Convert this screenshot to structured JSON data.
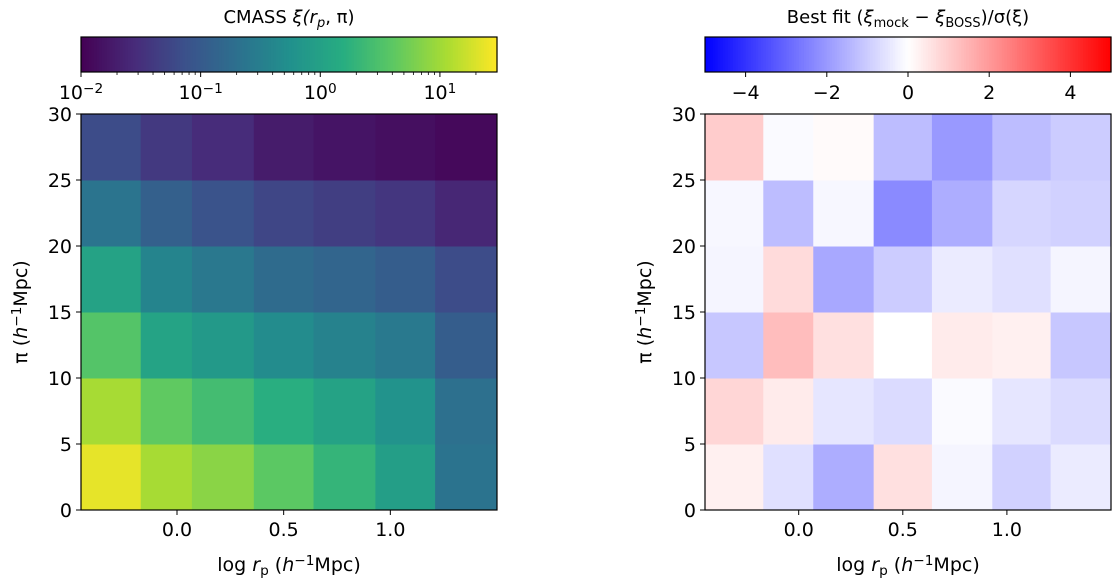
{
  "chart_data": [
    {
      "type": "heatmap",
      "title_parts": [
        "CMASS ",
        "ξ(",
        "r",
        "p",
        ", π)"
      ],
      "xlabel_parts": [
        "log ",
        "r",
        "p",
        " (",
        "h",
        "−1",
        "Mpc)"
      ],
      "ylabel_parts": [
        "π (",
        "h",
        "−1",
        "Mpc)"
      ],
      "xlim": [
        -0.45,
        1.5
      ],
      "ylim": [
        0,
        30
      ],
      "xticks": [
        0.0,
        0.5,
        1.0
      ],
      "xtick_labels": [
        "0.0",
        "0.5",
        "1.0"
      ],
      "yticks": [
        0,
        5,
        10,
        15,
        20,
        25,
        30
      ],
      "ytick_labels": [
        "0",
        "5",
        "10",
        "15",
        "20",
        "25",
        "30"
      ],
      "colormap": "viridis",
      "color_scale": "log",
      "colorbar": {
        "range": [
          0.01,
          30
        ],
        "ticks": [
          0.01,
          0.1,
          1,
          10
        ],
        "tick_labels": [
          [
            "10",
            "−2"
          ],
          [
            "10",
            "−1"
          ],
          [
            "10",
            "0"
          ],
          [
            "10",
            "1"
          ]
        ],
        "location": "top"
      },
      "x_bin_edges": [
        -0.45,
        -0.17,
        0.07,
        0.36,
        0.64,
        0.93,
        1.21,
        1.5
      ],
      "y_bin_edges": [
        0,
        5,
        10,
        15,
        20,
        25,
        30
      ],
      "rows_from_bottom": [
        [
          23.0,
          11.0,
          7.5,
          4.0,
          2.0,
          0.9,
          0.22
        ],
        [
          11.0,
          4.2,
          2.6,
          1.6,
          1.05,
          0.6,
          0.2
        ],
        [
          3.5,
          1.1,
          0.75,
          0.48,
          0.35,
          0.27,
          0.11
        ],
        [
          1.05,
          0.38,
          0.26,
          0.17,
          0.14,
          0.11,
          0.065
        ],
        [
          0.23,
          0.12,
          0.08,
          0.055,
          0.045,
          0.037,
          0.025
        ],
        [
          0.065,
          0.04,
          0.028,
          0.019,
          0.016,
          0.014,
          0.012
        ]
      ]
    },
    {
      "type": "heatmap",
      "title_parts": [
        "Best fit (",
        "ξ",
        "mock",
        " − ",
        "ξ",
        "BOSS",
        ")/σ(ξ)"
      ],
      "xlabel_parts": [
        "log ",
        "r",
        "p",
        " (",
        "h",
        "−1",
        "Mpc)"
      ],
      "ylabel_parts": [
        "π (",
        "h",
        "−1",
        "Mpc)"
      ],
      "xlim": [
        -0.45,
        1.5
      ],
      "ylim": [
        0,
        30
      ],
      "xticks": [
        0.0,
        0.5,
        1.0
      ],
      "xtick_labels": [
        "0.0",
        "0.5",
        "1.0"
      ],
      "yticks": [
        0,
        5,
        10,
        15,
        20,
        25,
        30
      ],
      "ytick_labels": [
        "0",
        "5",
        "10",
        "15",
        "20",
        "25",
        "30"
      ],
      "colormap": "bwr",
      "color_scale": "linear",
      "colorbar": {
        "range": [
          -5,
          5
        ],
        "ticks": [
          -4,
          -2,
          0,
          2,
          4
        ],
        "tick_labels": [
          "−4",
          "−2",
          "0",
          "2",
          "4"
        ],
        "location": "top"
      },
      "x_bin_edges": [
        -0.45,
        -0.17,
        0.07,
        0.36,
        0.64,
        0.93,
        1.21,
        1.5
      ],
      "y_bin_edges": [
        0,
        5,
        10,
        15,
        20,
        25,
        30
      ],
      "rows_from_bottom": [
        [
          0.3,
          -0.6,
          -1.6,
          0.6,
          -0.2,
          -0.9,
          -0.4
        ],
        [
          0.8,
          0.4,
          -0.5,
          -0.7,
          -0.1,
          -0.5,
          -0.7
        ],
        [
          -1.1,
          1.3,
          0.6,
          0.0,
          0.4,
          0.3,
          -1.1
        ],
        [
          -0.2,
          0.7,
          -1.7,
          -1.0,
          -0.4,
          -0.6,
          -0.2
        ],
        [
          -0.15,
          -1.3,
          -0.15,
          -2.3,
          -1.6,
          -0.8,
          -0.9
        ],
        [
          1.0,
          -0.1,
          0.1,
          -1.3,
          -2.0,
          -1.3,
          -1.0
        ]
      ]
    }
  ]
}
